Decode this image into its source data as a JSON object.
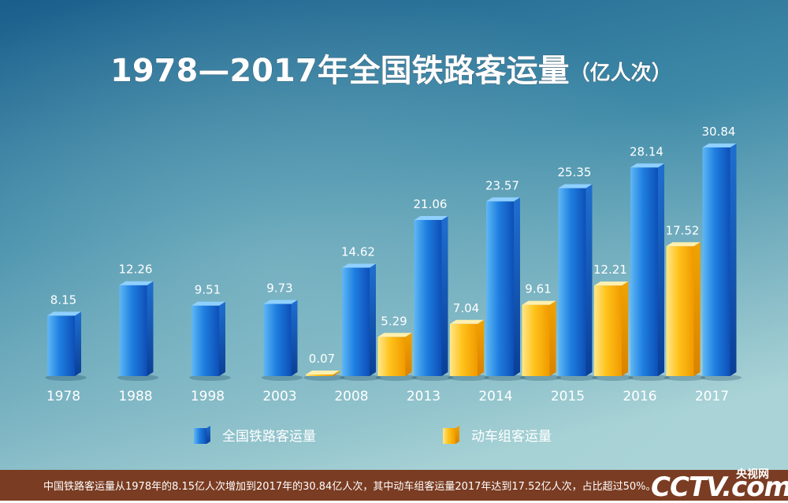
{
  "title_main": "1978—2017年全国铁路客运量",
  "title_unit": "（亿人次）",
  "footer_note": "中国铁路客运量从1978年的8.15亿人次增加到2017年的30.84亿人次，其中动车组客运量2017年达到17.52亿人次，占比超过50%。",
  "logo": {
    "main": "CCTV.com",
    "sub": "央视网"
  },
  "colors": {
    "series_total": "#1a73d9",
    "series_emu": "#f5b81c",
    "background_top": "#1d6e96",
    "background_bottom": "#9ec9d0",
    "footer": "#7a3c22"
  },
  "chart_data": {
    "type": "bar",
    "title": "1978—2017年全国铁路客运量（亿人次）",
    "categories": [
      "1978",
      "1988",
      "1998",
      "2003",
      "2008",
      "2013",
      "2014",
      "2015",
      "2016",
      "2017"
    ],
    "series": [
      {
        "name": "全国铁路客运量",
        "values": [
          8.15,
          12.26,
          9.51,
          9.73,
          14.62,
          21.06,
          23.57,
          25.35,
          28.14,
          30.84
        ]
      },
      {
        "name": "动车组客运量",
        "values": [
          null,
          null,
          null,
          null,
          0.07,
          5.29,
          7.04,
          9.61,
          12.21,
          17.52
        ]
      }
    ],
    "value_labels": {
      "total": [
        "8.15",
        "12.26",
        "9.51",
        "9.73",
        "14.62",
        "21.06",
        "23.57",
        "25.35",
        "28.14",
        "30.84"
      ],
      "emu": [
        "",
        "",
        "",
        "",
        "0.07",
        "5.29",
        "7.04",
        "9.61",
        "12.21",
        "17.52"
      ]
    },
    "legend_position": "bottom",
    "grid": false,
    "ylim": [
      0,
      35
    ]
  }
}
